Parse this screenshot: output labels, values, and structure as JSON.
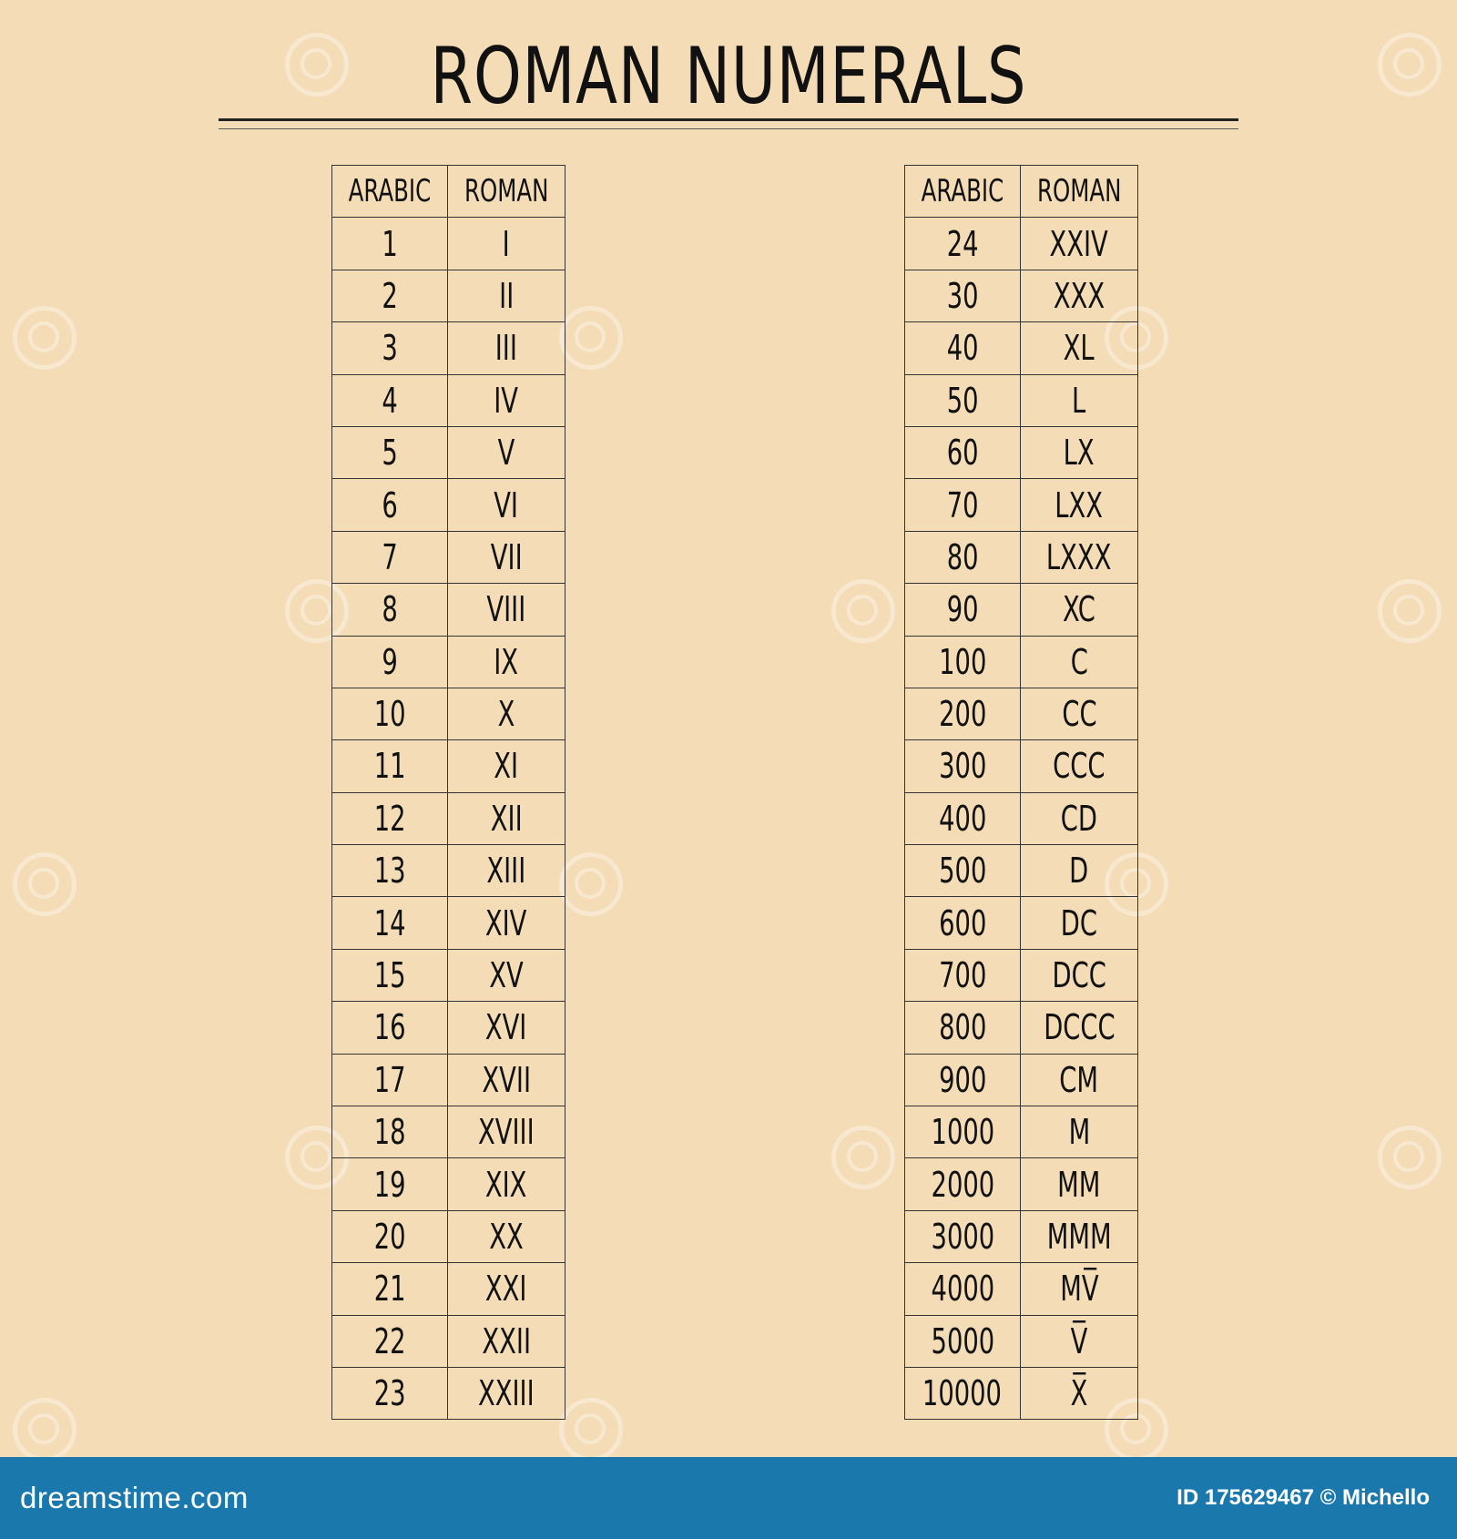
{
  "title": "ROMAN NUMERALS",
  "tables": [
    {
      "header": {
        "arabic": "ARABIC",
        "roman": "ROMAN"
      },
      "rows": [
        [
          "1",
          "I"
        ],
        [
          "2",
          "II"
        ],
        [
          "3",
          "III"
        ],
        [
          "4",
          "IV"
        ],
        [
          "5",
          "V"
        ],
        [
          "6",
          "VI"
        ],
        [
          "7",
          "VII"
        ],
        [
          "8",
          "VIII"
        ],
        [
          "9",
          "IX"
        ],
        [
          "10",
          "X"
        ],
        [
          "11",
          "XI"
        ],
        [
          "12",
          "XII"
        ],
        [
          "13",
          "XIII"
        ],
        [
          "14",
          "XIV"
        ],
        [
          "15",
          "XV"
        ],
        [
          "16",
          "XVI"
        ],
        [
          "17",
          "XVII"
        ],
        [
          "18",
          "XVIII"
        ],
        [
          "19",
          "XIX"
        ],
        [
          "20",
          "XX"
        ],
        [
          "21",
          "XXI"
        ],
        [
          "22",
          "XXII"
        ],
        [
          "23",
          "XXIII"
        ]
      ]
    },
    {
      "header": {
        "arabic": "ARABIC",
        "roman": "ROMAN"
      },
      "rows": [
        [
          "24",
          "XXIV"
        ],
        [
          "30",
          "XXX"
        ],
        [
          "40",
          "XL"
        ],
        [
          "50",
          "L"
        ],
        [
          "60",
          "LX"
        ],
        [
          "70",
          "LXX"
        ],
        [
          "80",
          "LXXX"
        ],
        [
          "90",
          "XC"
        ],
        [
          "100",
          "C"
        ],
        [
          "200",
          "CC"
        ],
        [
          "300",
          "CCC"
        ],
        [
          "400",
          "CD"
        ],
        [
          "500",
          "D"
        ],
        [
          "600",
          "DC"
        ],
        [
          "700",
          "DCC"
        ],
        [
          "800",
          "DCCC"
        ],
        [
          "900",
          "CM"
        ],
        [
          "1000",
          "M"
        ],
        [
          "2000",
          "MM"
        ],
        [
          "3000",
          "MMM"
        ],
        [
          "4000",
          "MV̅"
        ],
        [
          "5000",
          "V̅"
        ],
        [
          "10000",
          "X̅"
        ]
      ]
    }
  ],
  "footer": {
    "site": "dreamstime.com",
    "credit": "ID 175629467 © Michello"
  }
}
